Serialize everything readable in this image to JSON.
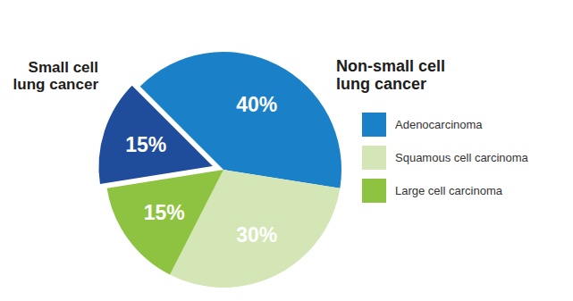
{
  "chart_data": {
    "type": "pie",
    "categories": [
      "Adenocarcinoma",
      "Squamous cell carcinoma",
      "Large cell carcinoma",
      null
    ],
    "values": [
      40,
      30,
      15,
      15
    ],
    "value_labels": [
      "40%",
      "30%",
      "15%",
      "15%"
    ],
    "colors": [
      "#1a80c8",
      "#d4e6b6",
      "#8dc340",
      "#1f4d9b"
    ],
    "data_labels": true,
    "legend": "right",
    "annotations": [
      "Small cell lung cancer",
      "Non-small cell lung cancer"
    ]
  }
}
